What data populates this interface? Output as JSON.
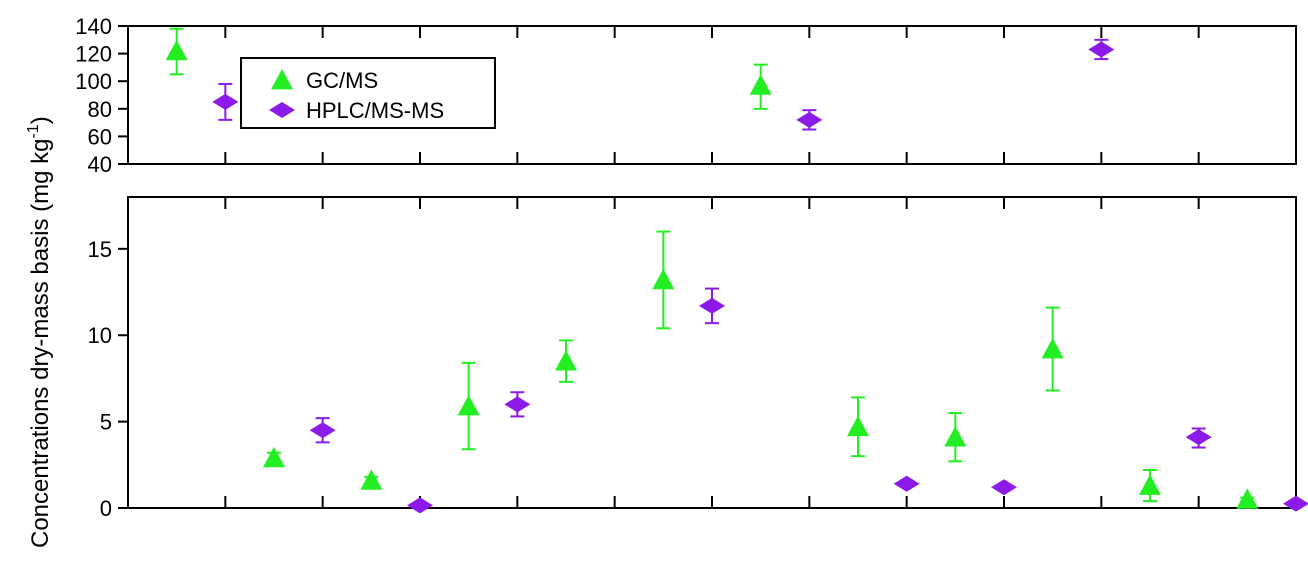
{
  "chart_data": {
    "type": "scatter",
    "ylabel": "Concentrations dry-mass basis (mg kg",
    "ylabel_superscript": "-1",
    "ylabel_suffix": ")",
    "broken_y_axis": true,
    "x_category_count": 12,
    "panels": [
      {
        "name": "upper",
        "ylim": [
          40,
          140
        ],
        "yticks": [
          "40",
          "60",
          "80",
          "100",
          "120",
          "140"
        ]
      },
      {
        "name": "lower",
        "ylim": [
          0,
          18
        ],
        "yticks": [
          "0",
          "5",
          "10",
          "15"
        ]
      }
    ],
    "legend": {
      "position": "top-left"
    },
    "series": [
      {
        "name": "GC/MS",
        "marker": "triangle",
        "color": "#22ee22",
        "points": [
          {
            "x": 0.5,
            "y": 122,
            "err_low": 105,
            "err_high": 138,
            "panel": "upper"
          },
          {
            "x": 1.5,
            "y": 2.9,
            "err_low": 2.7,
            "err_high": 3.2,
            "panel": "lower"
          },
          {
            "x": 2.5,
            "y": 1.6,
            "err_low": 1.4,
            "err_high": 1.8,
            "panel": "lower"
          },
          {
            "x": 3.5,
            "y": 5.9,
            "err_low": 3.4,
            "err_high": 8.4,
            "panel": "lower"
          },
          {
            "x": 4.5,
            "y": 8.5,
            "err_low": 7.3,
            "err_high": 9.7,
            "panel": "lower"
          },
          {
            "x": 5.5,
            "y": 13.2,
            "err_low": 10.4,
            "err_high": 16.0,
            "panel": "lower"
          },
          {
            "x": 6.5,
            "y": 97,
            "err_low": 80,
            "err_high": 112,
            "panel": "upper"
          },
          {
            "x": 7.5,
            "y": 4.7,
            "err_low": 3.0,
            "err_high": 6.4,
            "panel": "lower"
          },
          {
            "x": 8.5,
            "y": 4.1,
            "err_low": 2.7,
            "err_high": 5.5,
            "panel": "lower"
          },
          {
            "x": 9.5,
            "y": 9.2,
            "err_low": 6.8,
            "err_high": 11.6,
            "panel": "lower"
          },
          {
            "x": 10.5,
            "y": 1.3,
            "err_low": 0.4,
            "err_high": 2.2,
            "panel": "lower"
          },
          {
            "x": 11.5,
            "y": 0.5,
            "err_low": 0.4,
            "err_high": 0.6,
            "panel": "lower"
          }
        ]
      },
      {
        "name": "HPLC/MS-MS",
        "marker": "diamond",
        "color": "#8c1ae8",
        "points": [
          {
            "x": 1.0,
            "y": 85,
            "err_low": 72,
            "err_high": 98,
            "panel": "upper"
          },
          {
            "x": 2.0,
            "y": 4.5,
            "err_low": 3.8,
            "err_high": 5.2,
            "panel": "lower"
          },
          {
            "x": 3.0,
            "y": 0.15,
            "err_low": 0.1,
            "err_high": 0.2,
            "panel": "lower"
          },
          {
            "x": 4.0,
            "y": 6.0,
            "err_low": 5.3,
            "err_high": 6.7,
            "panel": "lower"
          },
          {
            "x": 6.0,
            "y": 11.7,
            "err_low": 10.7,
            "err_high": 12.7,
            "panel": "lower"
          },
          {
            "x": 7.0,
            "y": 72,
            "err_low": 65,
            "err_high": 79,
            "panel": "upper"
          },
          {
            "x": 8.0,
            "y": 1.4,
            "err_low": 1.3,
            "err_high": 1.5,
            "panel": "lower"
          },
          {
            "x": 9.0,
            "y": 1.2,
            "err_low": 1.1,
            "err_high": 1.3,
            "panel": "lower"
          },
          {
            "x": 10.0,
            "y": 123,
            "err_low": 116,
            "err_high": 130,
            "panel": "upper"
          },
          {
            "x": 11.0,
            "y": 4.1,
            "err_low": 3.5,
            "err_high": 4.6,
            "panel": "lower"
          },
          {
            "x": 12.0,
            "y": 0.25,
            "err_low": 0.2,
            "err_high": 0.3,
            "panel": "lower"
          }
        ]
      }
    ]
  }
}
